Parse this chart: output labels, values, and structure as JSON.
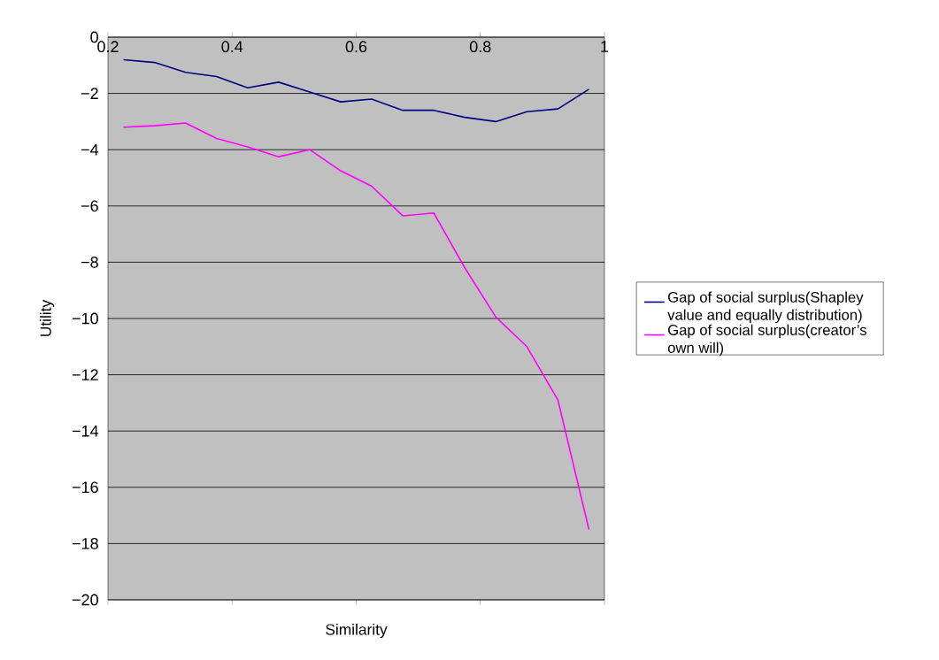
{
  "chart_data": {
    "type": "line",
    "xlabel": "Similarity",
    "ylabel": "Utility",
    "x": [
      0.225,
      0.275,
      0.325,
      0.375,
      0.425,
      0.475,
      0.525,
      0.575,
      0.625,
      0.675,
      0.725,
      0.775,
      0.825,
      0.875,
      0.925,
      0.975
    ],
    "series": [
      {
        "name": "Gap of social surplus(Shapley value and equally distribution)",
        "color": "#000080",
        "values": [
          -0.8,
          -0.9,
          -1.25,
          -1.4,
          -1.8,
          -1.6,
          -1.95,
          -2.3,
          -2.2,
          -2.6,
          -2.6,
          -2.85,
          -3.0,
          -2.65,
          -2.55,
          -1.85
        ]
      },
      {
        "name": "Gap of social surplus(creator’s own will)",
        "color": "#ff00ff",
        "values": [
          -3.2,
          -3.15,
          -3.05,
          -3.6,
          -3.9,
          -4.25,
          -4.0,
          -4.75,
          -5.3,
          -6.35,
          -6.25,
          -8.2,
          -9.95,
          -11.0,
          -12.9,
          -17.5
        ]
      }
    ],
    "xlim": [
      0.2,
      1
    ],
    "xticks": [
      0.2,
      0.4,
      0.6,
      0.8,
      1
    ],
    "ylim": [
      -20,
      0
    ],
    "yticks": [
      0,
      {
        "value": -2,
        "label": "−2"
      },
      {
        "value": -4,
        "label": "−4"
      },
      {
        "value": -6,
        "label": "−6"
      },
      {
        "value": -8,
        "label": "−8"
      },
      {
        "value": -10,
        "label": "−10"
      },
      {
        "value": -12,
        "label": "−12"
      },
      {
        "value": -14,
        "label": "−14"
      },
      {
        "value": -16,
        "label": "−16"
      },
      {
        "value": -18,
        "label": "−18"
      },
      {
        "value": -20,
        "label": "−20"
      }
    ],
    "grid": "y",
    "legend": "right",
    "marker": "none",
    "line_style": "solid"
  }
}
